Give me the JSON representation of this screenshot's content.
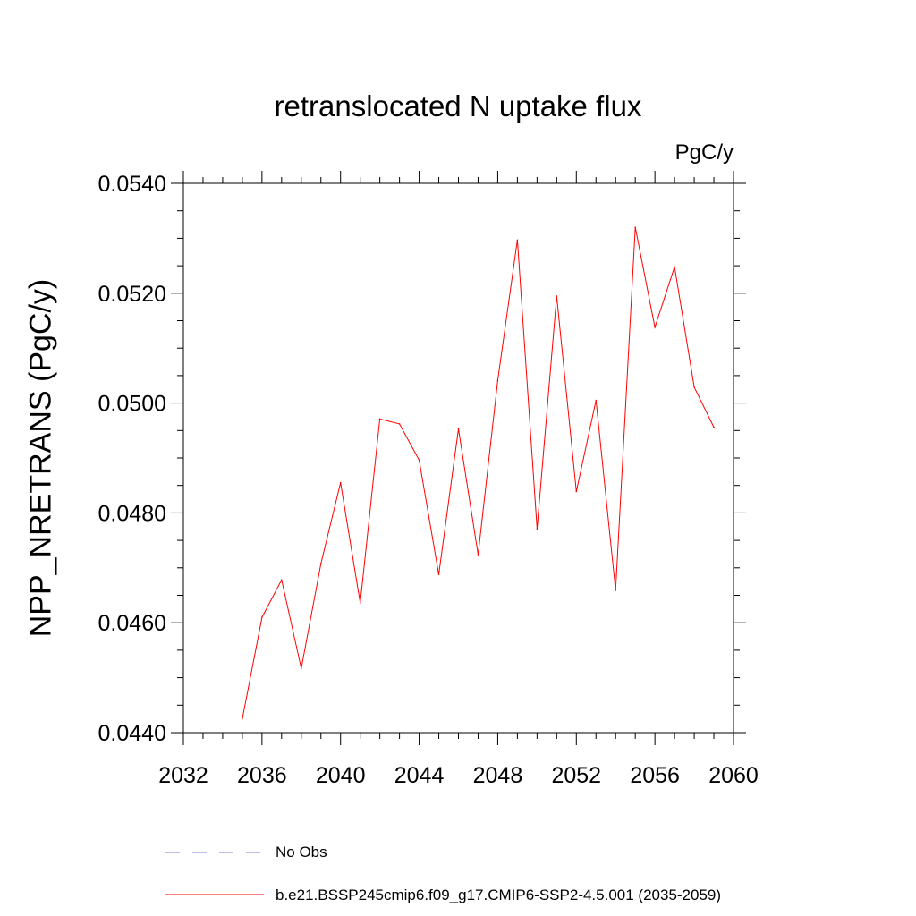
{
  "chart_data": {
    "type": "line",
    "title": "retranslocated N uptake flux",
    "units_label": "PgC/y",
    "ylabel": "NPP_NRETRANS  (PgC/y)",
    "xlabel": "",
    "xlim": [
      2032,
      2060
    ],
    "ylim": [
      0.044,
      0.054
    ],
    "x_ticks": [
      "2032",
      "2036",
      "2040",
      "2044",
      "2048",
      "2052",
      "2056",
      "2060"
    ],
    "y_ticks": [
      "0.0440",
      "0.0460",
      "0.0480",
      "0.0500",
      "0.0520",
      "0.0540"
    ],
    "grid": false,
    "legend_position": "bottom",
    "series": [
      {
        "name": "b.e21.BSSP245cmip6.f09_g17.CMIP6-SSP2-4.5.001 (2035-2059)",
        "color": "#ff0000",
        "style": "solid",
        "x": [
          2035,
          2036,
          2037,
          2038,
          2039,
          2040,
          2041,
          2042,
          2043,
          2044,
          2045,
          2046,
          2047,
          2048,
          2049,
          2050,
          2051,
          2052,
          2053,
          2054,
          2055,
          2056,
          2057,
          2058,
          2059
        ],
        "values": [
          0.04425,
          0.0461,
          0.04678,
          0.04517,
          0.04708,
          0.04855,
          0.04636,
          0.04971,
          0.04962,
          0.04896,
          0.04688,
          0.04953,
          0.04724,
          0.05041,
          0.05297,
          0.04771,
          0.05195,
          0.04839,
          0.05005,
          0.04659,
          0.0532,
          0.05138,
          0.05248,
          0.05029,
          0.04956
        ]
      },
      {
        "name": "No Obs",
        "color": "#7b7bd6",
        "style": "dashed",
        "x": [],
        "values": []
      }
    ]
  }
}
